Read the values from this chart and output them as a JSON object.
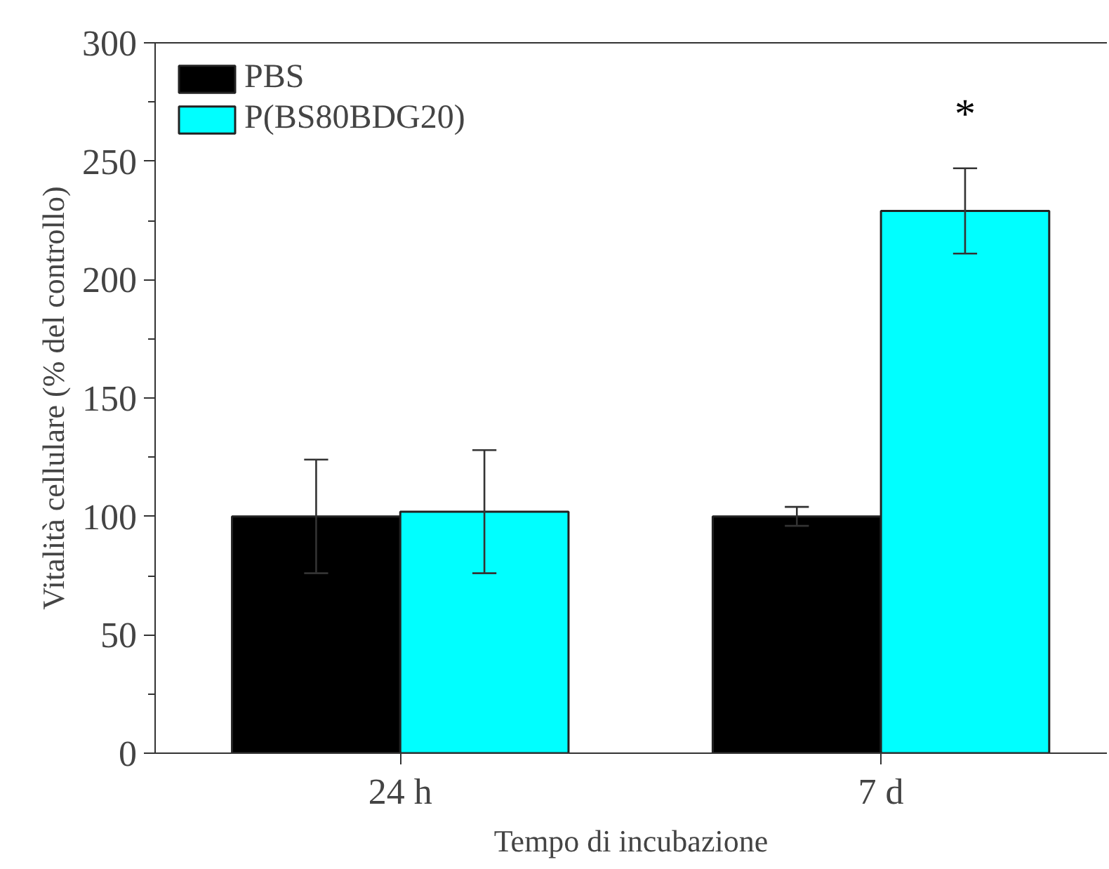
{
  "chart_data": {
    "type": "bar",
    "xlabel": "Tempo di incubazione",
    "ylabel": "Vitalità cellulare (% del controllo)",
    "categories": [
      "24 h",
      "7 d"
    ],
    "series": [
      {
        "name": "PBS",
        "color": "#000000",
        "values": [
          100,
          100
        ],
        "errors": [
          24,
          4
        ]
      },
      {
        "name": "P(BS80BDG20)",
        "color": "#00ffff",
        "values": [
          102,
          229
        ],
        "errors": [
          26,
          18
        ]
      }
    ],
    "ylim": [
      0,
      300
    ],
    "yticks": [
      0,
      50,
      100,
      150,
      200,
      250,
      300
    ],
    "grid": false,
    "legend": "top left",
    "annotations": [
      "*"
    ]
  }
}
